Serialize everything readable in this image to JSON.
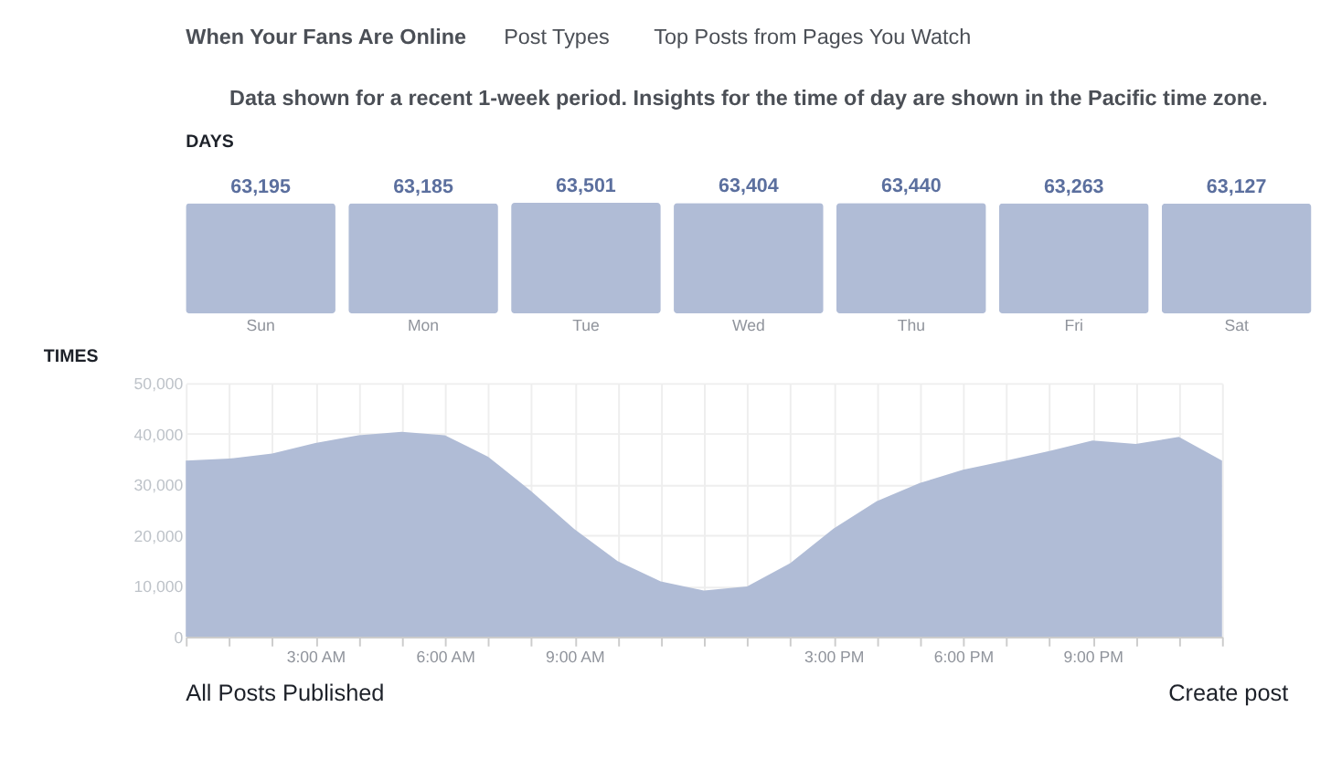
{
  "chart_data": [
    {
      "type": "bar",
      "title": "DAYS",
      "categories": [
        "Sun",
        "Mon",
        "Tue",
        "Wed",
        "Thu",
        "Fri",
        "Sat"
      ],
      "values": [
        63195,
        63185,
        63501,
        63404,
        63440,
        63263,
        63127
      ],
      "color": "#b0bcd6",
      "value_labels": [
        "63,195",
        "63,185",
        "63,501",
        "63,404",
        "63,440",
        "63,263",
        "63,127"
      ],
      "tick_labels": "x",
      "annotations": [
        "When Your Fans Are Online",
        "Post Types",
        "Top Posts from Pages You Watch",
        "Data shown for a recent 1-week period. Insights for the time of day are shown in the Pacific time zone."
      ]
    },
    {
      "type": "area",
      "title": "TIMES",
      "x": [
        0,
        1,
        2,
        3,
        4,
        5,
        6,
        7,
        8,
        9,
        10,
        11,
        12,
        13,
        14,
        15,
        16,
        17,
        18,
        19,
        20,
        21,
        22,
        23,
        24
      ],
      "values": [
        34700,
        35100,
        36100,
        38200,
        39700,
        40400,
        39700,
        35500,
        28700,
        21200,
        14900,
        10900,
        9100,
        9900,
        14500,
        21300,
        26700,
        30300,
        32900,
        34700,
        36600,
        38700,
        38000,
        39400,
        34700
      ],
      "color": "#b0bcd6",
      "xlim": [
        0,
        24
      ],
      "ylim": [
        0,
        50000
      ],
      "yticks": [
        0,
        {
          "value": 10000,
          "label": "10,000"
        },
        {
          "value": 20000,
          "label": "20,000"
        },
        {
          "value": 30000,
          "label": "30,000"
        },
        {
          "value": 40000,
          "label": "40,000"
        },
        {
          "value": 50000,
          "label": "50,000"
        }
      ],
      "xticks": [
        {
          "value": 0,
          "label": null
        },
        {
          "value": 1,
          "label": null
        },
        {
          "value": 2,
          "label": null
        },
        {
          "value": 3,
          "label": "3:00 AM"
        },
        {
          "value": 4,
          "label": null
        },
        {
          "value": 5,
          "label": null
        },
        {
          "value": 6,
          "label": "6:00 AM"
        },
        {
          "value": 7,
          "label": null
        },
        {
          "value": 8,
          "label": null
        },
        {
          "value": 9,
          "label": "9:00 AM"
        },
        {
          "value": 10,
          "label": null
        },
        {
          "value": 11,
          "label": null
        },
        {
          "value": 12,
          "label": null
        },
        {
          "value": 13,
          "label": null
        },
        {
          "value": 14,
          "label": null
        },
        {
          "value": 15,
          "label": "3:00 PM"
        },
        {
          "value": 16,
          "label": null
        },
        {
          "value": 17,
          "label": null
        },
        {
          "value": 18,
          "label": "6:00 PM"
        },
        {
          "value": 19,
          "label": null
        },
        {
          "value": 20,
          "label": null
        },
        {
          "value": 21,
          "label": "9:00 PM"
        },
        {
          "value": 22,
          "label": null
        },
        {
          "value": 23,
          "label": null
        },
        {
          "value": 24,
          "label": null
        }
      ],
      "grid": true,
      "annotations": [
        "All Posts Published",
        "Create post"
      ]
    }
  ]
}
